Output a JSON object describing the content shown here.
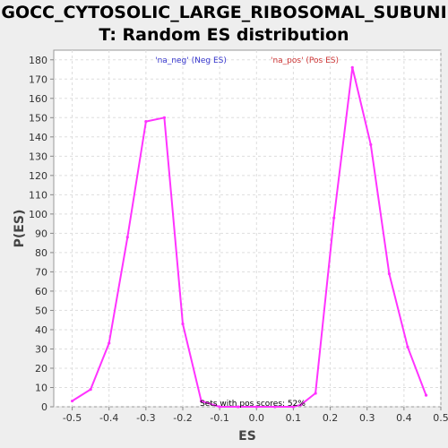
{
  "chart_data": {
    "type": "line",
    "title_lines": [
      "GOCC_CYTOSOLIC_LARGE_RIBOSOMAL_SUBUNI",
      "T: Random ES distribution"
    ],
    "xlabel": "ES",
    "ylabel": "P(ES)",
    "xlim": [
      -0.55,
      0.5
    ],
    "ylim": [
      0,
      185
    ],
    "x_ticks": [
      -0.5,
      -0.4,
      -0.3,
      -0.2,
      -0.1,
      0.0,
      0.1,
      0.2,
      0.3,
      0.4,
      0.5
    ],
    "x_tick_labels": [
      "-0.5",
      "-0.4",
      "-0.3",
      "-0.2",
      "-0.1",
      "0.0",
      "0.1",
      "0.2",
      "0.3",
      "0.4",
      "0.5"
    ],
    "y_ticks": [
      0,
      10,
      20,
      30,
      40,
      50,
      60,
      70,
      80,
      90,
      100,
      110,
      120,
      130,
      140,
      150,
      160,
      170,
      180
    ],
    "y_tick_labels": [
      "0",
      "10",
      "20",
      "30",
      "40",
      "50",
      "60",
      "70",
      "80",
      "90",
      "100",
      "110",
      "120",
      "130",
      "140",
      "150",
      "160",
      "170",
      "180"
    ],
    "grid": true,
    "line_color": "#ff33ff",
    "x": [
      -0.5,
      -0.45,
      -0.4,
      -0.35,
      -0.3,
      -0.25,
      -0.2,
      -0.15,
      -0.1,
      -0.05,
      0.0,
      0.05,
      0.1,
      0.12,
      0.16,
      0.21,
      0.26,
      0.31,
      0.36,
      0.41,
      0.46
    ],
    "y": [
      3,
      9,
      33,
      88,
      148,
      150,
      43,
      3,
      0,
      0,
      0,
      0,
      0,
      1,
      7,
      98,
      176,
      136,
      69,
      31,
      6
    ],
    "annotations": [
      {
        "text": "'na_neg' (Neg ES)",
        "color": "#3333cc"
      },
      {
        "text": "'na_pos' (Pos ES)",
        "color": "#cc3333"
      },
      {
        "text": "Sets with pos scores: 52%",
        "color": "#000000"
      }
    ]
  }
}
